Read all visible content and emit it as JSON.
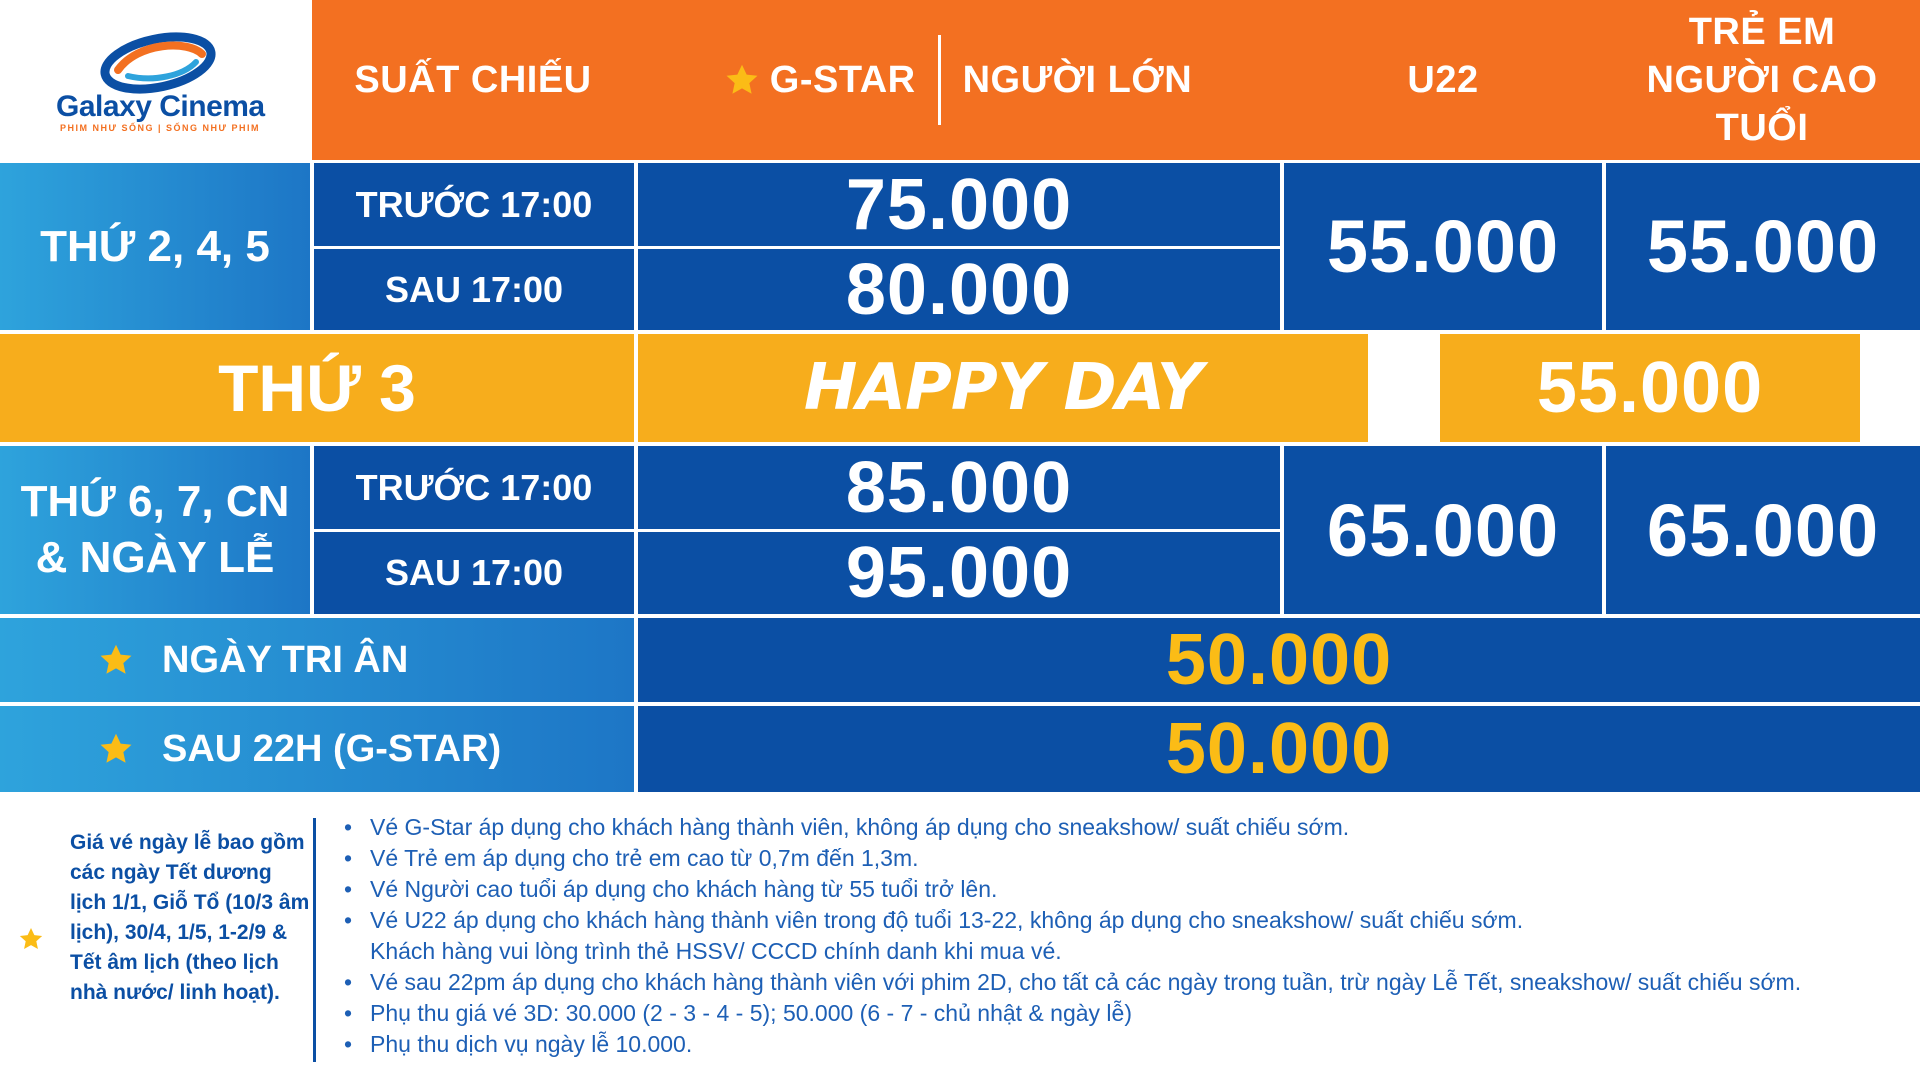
{
  "logo": {
    "name": "Galaxy Cinema",
    "tagline": "PHIM NHƯ SỐNG | SỐNG NHƯ PHIM"
  },
  "header": {
    "showtime": "SUẤT CHIẾU",
    "gstar": "G-STAR",
    "adult": "NGƯỜI LỚN",
    "u22": "U22",
    "kids_line1": "TRẺ EM",
    "kids_line2": "NGƯỜI CAO TUỔI"
  },
  "weekday": {
    "day": "THỨ 2, 4, 5",
    "before": "TRƯỚC 17:00",
    "after": "SAU 17:00",
    "price_before": "75.000",
    "price_after": "80.000",
    "u22": "55.000",
    "kids": "55.000"
  },
  "tuesday": {
    "day": "THỨ 3",
    "label": "HAPPY DAY",
    "price": "55.000"
  },
  "weekend": {
    "day_line1": "THỨ 6, 7, CN",
    "day_line2": "& NGÀY LỄ",
    "before": "TRƯỚC 17:00",
    "after": "SAU 17:00",
    "price_before": "85.000",
    "price_after": "95.000",
    "u22": "65.000",
    "kids": "65.000"
  },
  "special": [
    {
      "label": "NGÀY TRI ÂN",
      "price": "50.000"
    },
    {
      "label": "SAU 22H (G-STAR)",
      "price": "50.000"
    }
  ],
  "notes_left": "Giá vé ngày lễ bao gồm các ngày Tết dương lịch 1/1, Giỗ Tổ (10/3 âm lịch), 30/4, 1/5, 1-2/9 & Tết âm lịch (theo lịch nhà nước/ linh hoạt).",
  "notes": [
    "Vé G-Star áp dụng cho khách hàng thành viên, không áp dụng cho sneakshow/ suất chiếu sớm.",
    "Vé Trẻ em áp dụng cho trẻ em cao từ 0,7m đến 1,3m.",
    "Vé Người cao tuổi áp dụng cho khách hàng từ 55 tuổi trở lên.",
    "Vé U22 áp dụng cho khách hàng thành viên trong độ tuổi 13-22, không áp dụng cho sneakshow/ suất chiếu sớm.",
    "Khách hàng vui lòng trình thẻ HSSV/ CCCD chính danh khi mua vé.",
    "Vé sau 22pm áp dụng cho khách hàng thành viên với phim 2D, cho tất cả các ngày trong tuần, trừ ngày Lễ Tết, sneakshow/ suất chiếu sớm.",
    "Phụ thu giá vé 3D: 30.000 (2 - 3 - 4 - 5); 50.000 (6 - 7 - chủ nhật & ngày lễ)",
    "Phụ thu dịch vụ ngày lễ 10.000."
  ],
  "colors": {
    "orange": "#f37021",
    "dark_blue": "#0b4fa4",
    "light_blue": "#2ea3dc",
    "yellow": "#f7ad1c",
    "gold": "#fbbc16"
  },
  "icons": [
    "star-icon",
    "galaxy-logo-icon"
  ]
}
